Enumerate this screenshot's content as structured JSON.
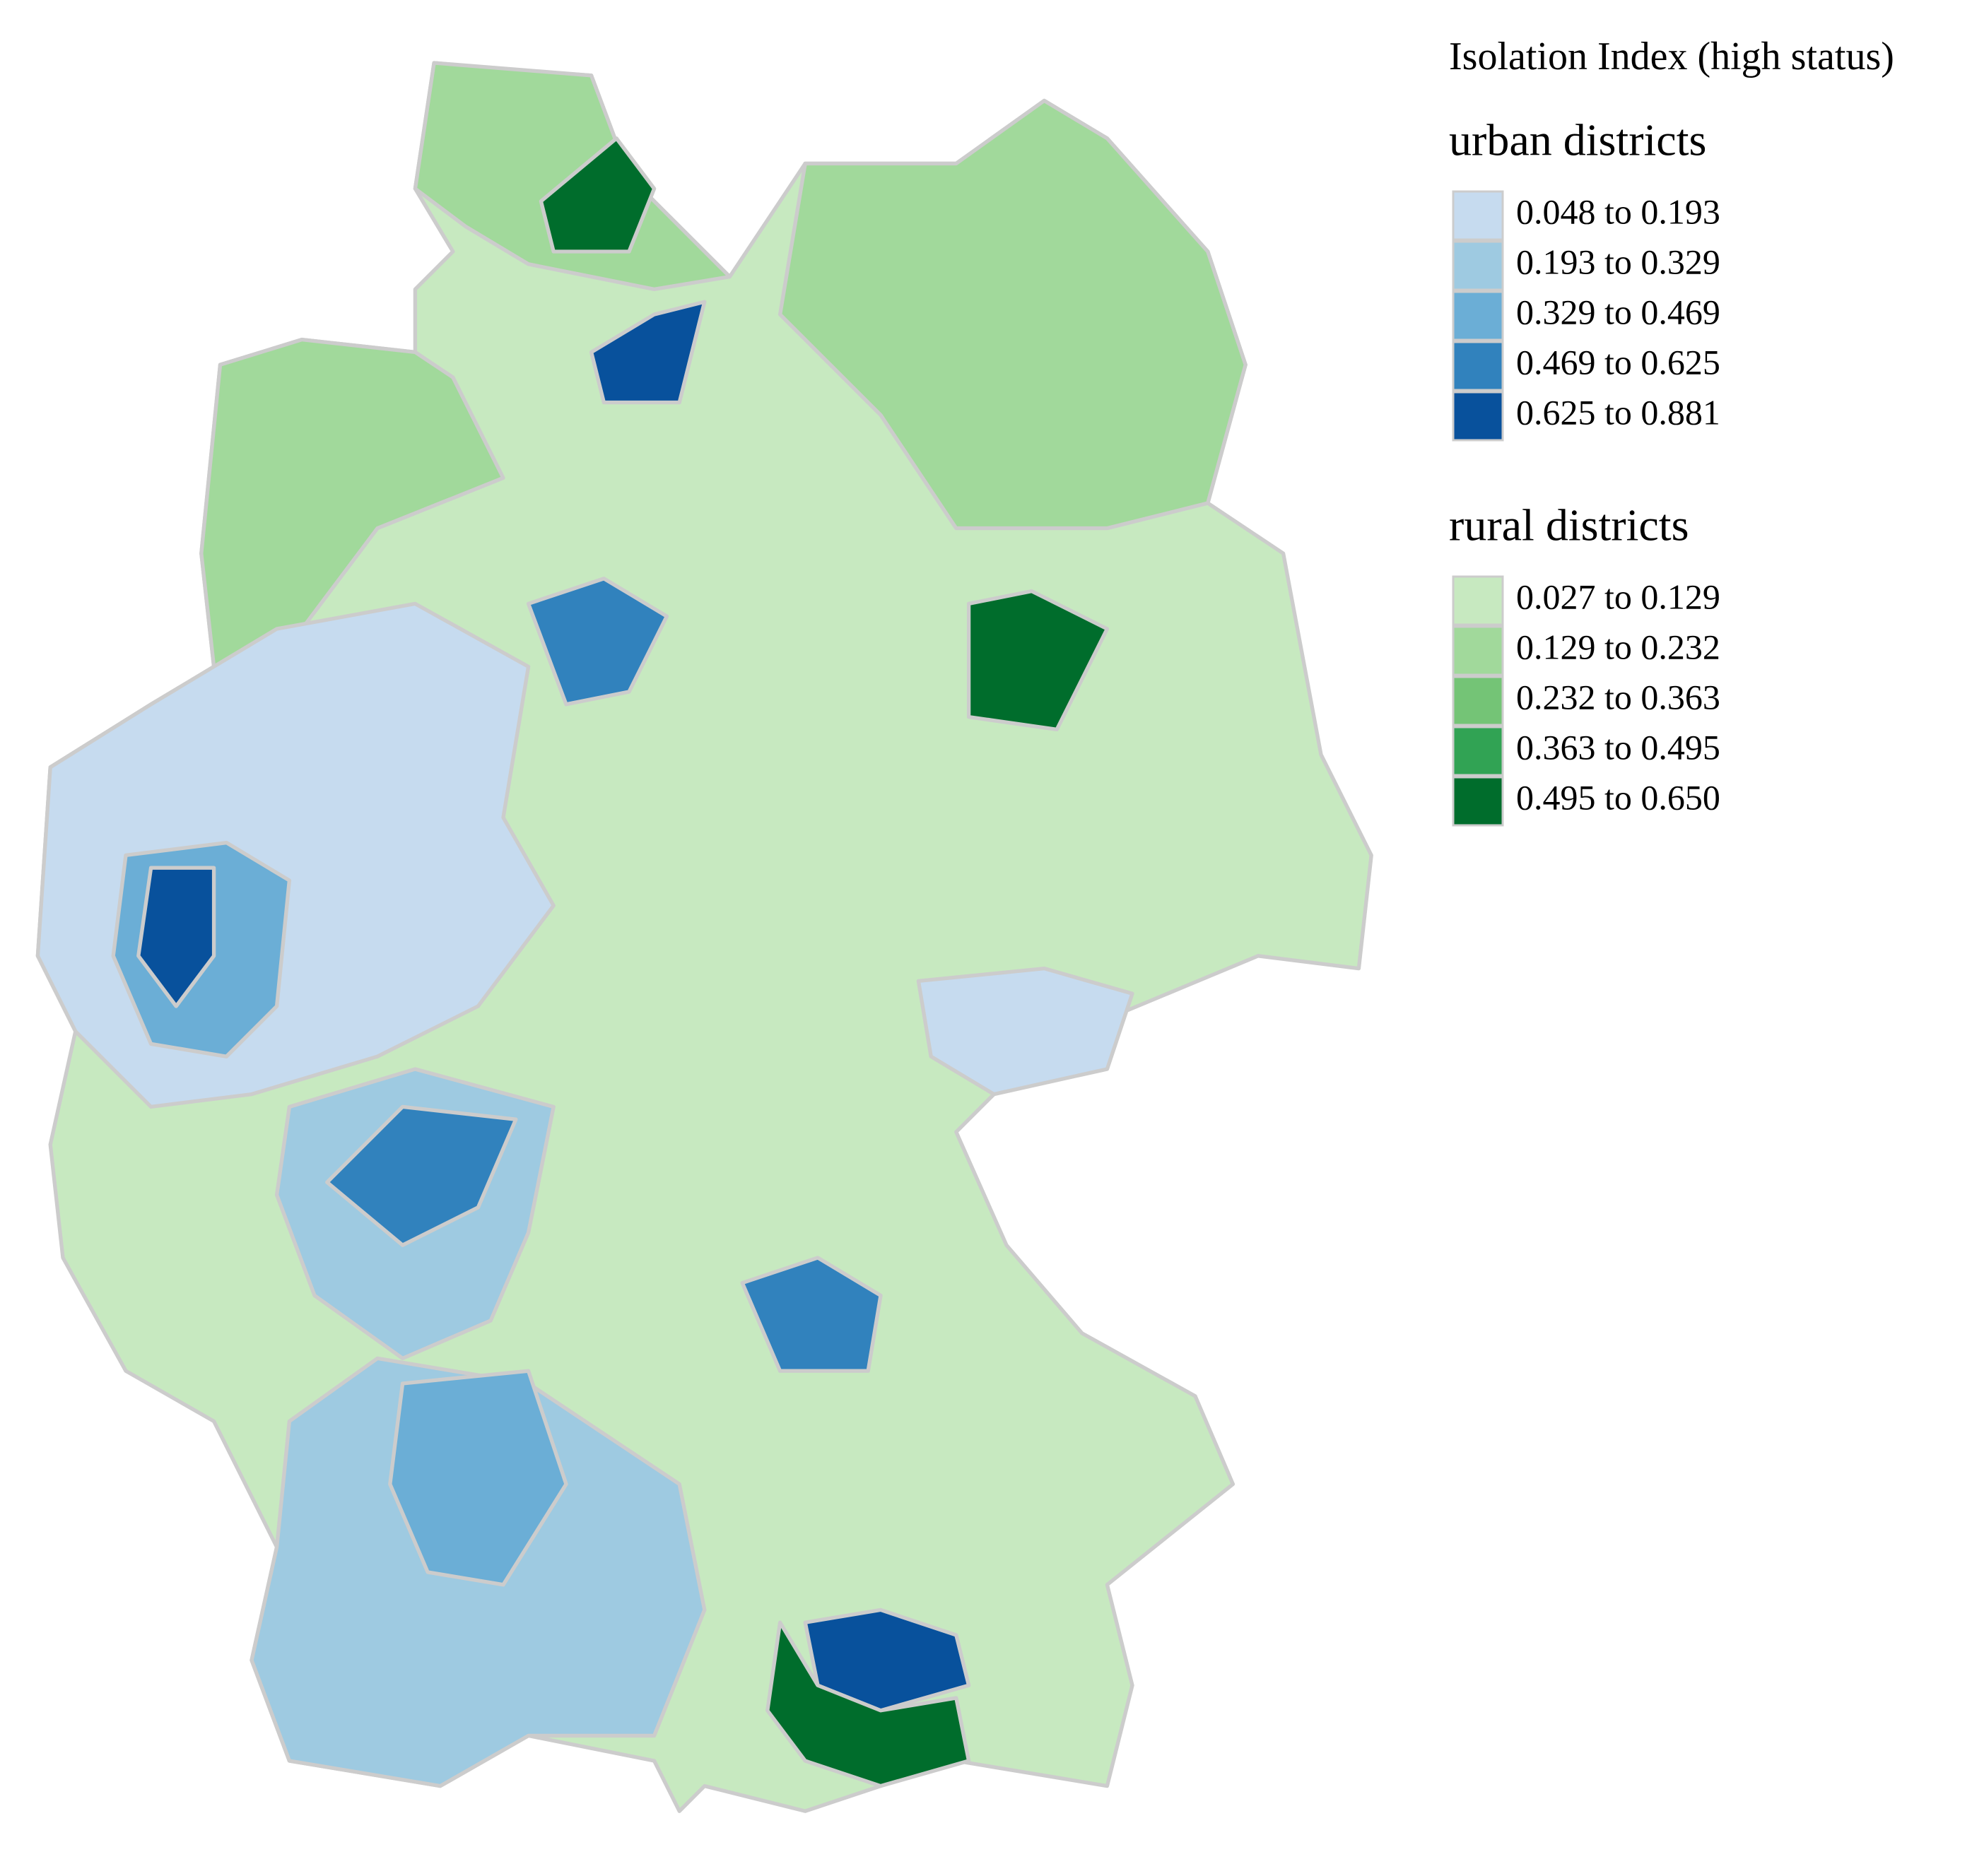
{
  "legend": {
    "title": "Isolation Index (high status)",
    "groups": [
      {
        "heading": "urban districts",
        "items": [
          {
            "label": "0.048 to 0.193",
            "color": "#c6dbef"
          },
          {
            "label": "0.193 to 0.329",
            "color": "#9ecae1"
          },
          {
            "label": "0.329 to 0.469",
            "color": "#6baed6"
          },
          {
            "label": "0.469 to 0.625",
            "color": "#3182bd"
          },
          {
            "label": "0.625 to 0.881",
            "color": "#08519c"
          }
        ]
      },
      {
        "heading": "rural districts",
        "items": [
          {
            "label": "0.027 to 0.129",
            "color": "#c7e9c0"
          },
          {
            "label": "0.129 to 0.232",
            "color": "#a1d99b"
          },
          {
            "label": "0.232 to 0.363",
            "color": "#74c476"
          },
          {
            "label": "0.363 to 0.495",
            "color": "#31a354"
          },
          {
            "label": "0.495 to 0.650",
            "color": "#006d2c"
          }
        ]
      }
    ]
  }
}
